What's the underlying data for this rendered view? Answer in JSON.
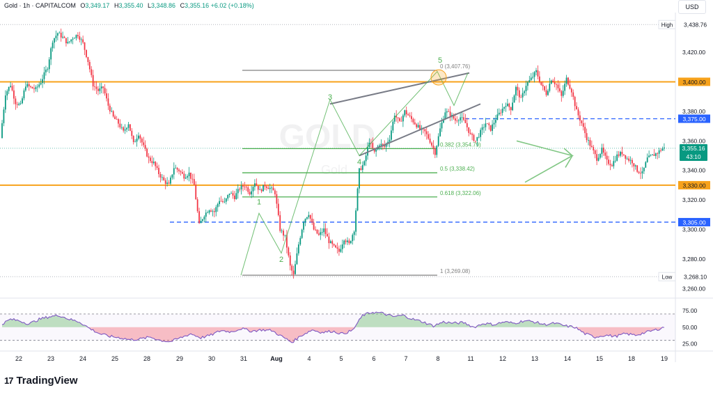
{
  "header": {
    "symbol": "Gold · 1h · CAPITALCOM",
    "open_label": "O",
    "open": "3,349.17",
    "high_label": "H",
    "high": "3,355.40",
    "low_label": "L",
    "low": "3,348.86",
    "close_label": "C",
    "close": "3,355.16",
    "change": "+6.02 (+0.18%)"
  },
  "currency": "USD",
  "brand": {
    "logo_glyph": "17",
    "name": "TradingView"
  },
  "watermark": {
    "symbol": "GOLD",
    "name": "Gold"
  },
  "current_price": {
    "value": "3,355.16",
    "countdown": "43:10"
  },
  "colors": {
    "up": "#089981",
    "down": "#f23645",
    "orange": "#f7a21b",
    "blue": "#2962ff",
    "fib": "#4caf50",
    "gray": "#808080",
    "rsi": "#7e57c2"
  },
  "chart_data": {
    "type": "candlestick",
    "ylim": [
      3255,
      3445
    ],
    "x_ticks": [
      "22",
      "23",
      "24",
      "25",
      "28",
      "29",
      "30",
      "31",
      "Aug",
      "4",
      "5",
      "6",
      "7",
      "8",
      "11",
      "12",
      "13",
      "14",
      "15",
      "18",
      "19"
    ],
    "y_ticks": [
      "3,420.00",
      "3,380.00",
      "3,360.00",
      "3,340.00",
      "3,320.00",
      "3,300.00",
      "3,280.00",
      "3,260.00"
    ],
    "price_key_points": [
      [
        0,
        3362
      ],
      [
        3,
        3392
      ],
      [
        6,
        3398
      ],
      [
        9,
        3386
      ],
      [
        12,
        3384
      ],
      [
        15,
        3398
      ],
      [
        18,
        3396
      ],
      [
        21,
        3395
      ],
      [
        24,
        3400
      ],
      [
        28,
        3410
      ],
      [
        31,
        3428
      ],
      [
        34,
        3433
      ],
      [
        37,
        3430
      ],
      [
        40,
        3426
      ],
      [
        43,
        3430
      ],
      [
        46,
        3432
      ],
      [
        49,
        3426
      ],
      [
        52,
        3414
      ],
      [
        55,
        3398
      ],
      [
        58,
        3394
      ],
      [
        61,
        3396
      ],
      [
        64,
        3384
      ],
      [
        67,
        3376
      ],
      [
        70,
        3372
      ],
      [
        73,
        3366
      ],
      [
        76,
        3372
      ],
      [
        79,
        3358
      ],
      [
        82,
        3365
      ],
      [
        85,
        3356
      ],
      [
        88,
        3348
      ],
      [
        91,
        3345
      ],
      [
        94,
        3338
      ],
      [
        97,
        3333
      ],
      [
        100,
        3330
      ],
      [
        103,
        3342
      ],
      [
        106,
        3340
      ],
      [
        109,
        3336
      ],
      [
        112,
        3338
      ],
      [
        115,
        3330
      ],
      [
        118,
        3303
      ],
      [
        121,
        3310
      ],
      [
        124,
        3314
      ],
      [
        127,
        3312
      ],
      [
        130,
        3320
      ],
      [
        133,
        3318
      ],
      [
        136,
        3325
      ],
      [
        139,
        3322
      ],
      [
        142,
        3328
      ],
      [
        145,
        3330
      ],
      [
        148,
        3325
      ],
      [
        151,
        3332
      ],
      [
        154,
        3326
      ],
      [
        157,
        3330
      ],
      [
        160,
        3328
      ],
      [
        163,
        3325
      ],
      [
        166,
        3300
      ],
      [
        169,
        3295
      ],
      [
        172,
        3275
      ],
      [
        174,
        3269
      ],
      [
        177,
        3290
      ],
      [
        180,
        3306
      ],
      [
        183,
        3311
      ],
      [
        186,
        3300
      ],
      [
        189,
        3296
      ],
      [
        192,
        3300
      ],
      [
        195,
        3292
      ],
      [
        198,
        3288
      ],
      [
        201,
        3285
      ],
      [
        204,
        3294
      ],
      [
        207,
        3290
      ],
      [
        210,
        3300
      ],
      [
        213,
        3340
      ],
      [
        216,
        3345
      ],
      [
        219,
        3360
      ],
      [
        222,
        3352
      ],
      [
        225,
        3358
      ],
      [
        228,
        3356
      ],
      [
        231,
        3362
      ],
      [
        234,
        3378
      ],
      [
        237,
        3372
      ],
      [
        240,
        3380
      ],
      [
        243,
        3376
      ],
      [
        246,
        3372
      ],
      [
        249,
        3368
      ],
      [
        252,
        3366
      ],
      [
        255,
        3360
      ],
      [
        258,
        3352
      ],
      [
        261,
        3368
      ],
      [
        264,
        3380
      ],
      [
        267,
        3378
      ],
      [
        270,
        3374
      ],
      [
        273,
        3376
      ],
      [
        276,
        3372
      ],
      [
        279,
        3364
      ],
      [
        282,
        3360
      ],
      [
        285,
        3366
      ],
      [
        288,
        3372
      ],
      [
        291,
        3368
      ],
      [
        294,
        3375
      ],
      [
        297,
        3380
      ],
      [
        300,
        3385
      ],
      [
        303,
        3382
      ],
      [
        306,
        3396
      ],
      [
        309,
        3388
      ],
      [
        312,
        3398
      ],
      [
        315,
        3402
      ],
      [
        318,
        3407
      ],
      [
        321,
        3398
      ],
      [
        324,
        3392
      ],
      [
        327,
        3402
      ],
      [
        330,
        3398
      ],
      [
        333,
        3390
      ],
      [
        336,
        3402
      ],
      [
        339,
        3394
      ],
      [
        342,
        3380
      ],
      [
        345,
        3372
      ],
      [
        348,
        3362
      ],
      [
        351,
        3355
      ],
      [
        354,
        3348
      ],
      [
        357,
        3354
      ],
      [
        360,
        3346
      ],
      [
        363,
        3344
      ],
      [
        366,
        3350
      ],
      [
        369,
        3352
      ],
      [
        372,
        3348
      ],
      [
        375,
        3346
      ],
      [
        378,
        3340
      ],
      [
        381,
        3338
      ],
      [
        384,
        3348
      ],
      [
        387,
        3350
      ],
      [
        390,
        3352
      ],
      [
        393,
        3355
      ]
    ],
    "price_levels": [
      {
        "value": 3400.0,
        "label": "3,400.00",
        "style": "orange"
      },
      {
        "value": 3330.0,
        "label": "3,330.00",
        "style": "orange"
      },
      {
        "value": 3375.0,
        "label": "3,375.00",
        "style": "blue-dashed"
      },
      {
        "value": 3305.0,
        "label": "3,305.00",
        "style": "blue-dashed"
      }
    ],
    "high": {
      "label": "High",
      "value": 3438.76,
      "text": "3,438.76"
    },
    "low": {
      "label": "Low",
      "value": 3268.1,
      "text": "3,268.10"
    },
    "fibonacci": [
      {
        "ratio": "0",
        "value": 3407.76,
        "text": "0 (3,407.76)"
      },
      {
        "ratio": "0.382",
        "value": 3354.79,
        "text": "0.382 (3,354.79)"
      },
      {
        "ratio": "0.5",
        "value": 3338.42,
        "text": "0.5 (3,338.42)"
      },
      {
        "ratio": "0.618",
        "value": 3322.06,
        "text": "0.618 (3,322.06)"
      },
      {
        "ratio": "1",
        "value": 3269.08,
        "text": "1 (3,269.08)"
      }
    ],
    "waves": [
      {
        "label": "1",
        "x": 184,
        "y": 3317
      },
      {
        "label": "2",
        "x": 193,
        "y": 3278
      },
      {
        "label": "3",
        "x": 234,
        "y": 3388
      },
      {
        "label": "4",
        "x": 257,
        "y": 3344
      },
      {
        "label": "5",
        "x": 314,
        "y": 3413
      }
    ],
    "rsi": {
      "ylim": [
        18,
        90
      ],
      "ticks": [
        "75.00",
        "50.00",
        "25.00"
      ],
      "upper": 70,
      "lower": 30,
      "key_points": [
        [
          0,
          55
        ],
        [
          5,
          62
        ],
        [
          10,
          60
        ],
        [
          16,
          55
        ],
        [
          22,
          62
        ],
        [
          28,
          66
        ],
        [
          34,
          68
        ],
        [
          40,
          62
        ],
        [
          46,
          58
        ],
        [
          52,
          48
        ],
        [
          58,
          40
        ],
        [
          64,
          36
        ],
        [
          70,
          34
        ],
        [
          76,
          31
        ],
        [
          82,
          32
        ],
        [
          88,
          35
        ],
        [
          94,
          30
        ],
        [
          100,
          28
        ],
        [
          106,
          34
        ],
        [
          112,
          40
        ],
        [
          118,
          34
        ],
        [
          124,
          38
        ],
        [
          130,
          45
        ],
        [
          136,
          43
        ],
        [
          142,
          48
        ],
        [
          148,
          44
        ],
        [
          154,
          46
        ],
        [
          160,
          45
        ],
        [
          166,
          36
        ],
        [
          172,
          27
        ],
        [
          178,
          38
        ],
        [
          184,
          46
        ],
        [
          190,
          42
        ],
        [
          196,
          44
        ],
        [
          202,
          40
        ],
        [
          208,
          45
        ],
        [
          214,
          68
        ],
        [
          220,
          73
        ],
        [
          226,
          71
        ],
        [
          232,
          66
        ],
        [
          238,
          68
        ],
        [
          244,
          62
        ],
        [
          250,
          58
        ],
        [
          256,
          52
        ],
        [
          262,
          58
        ],
        [
          268,
          56
        ],
        [
          274,
          57
        ],
        [
          280,
          50
        ],
        [
          286,
          56
        ],
        [
          292,
          54
        ],
        [
          298,
          58
        ],
        [
          304,
          56
        ],
        [
          310,
          60
        ],
        [
          316,
          58
        ],
        [
          322,
          54
        ],
        [
          328,
          56
        ],
        [
          334,
          52
        ],
        [
          340,
          50
        ],
        [
          346,
          40
        ],
        [
          352,
          35
        ],
        [
          358,
          38
        ],
        [
          364,
          36
        ],
        [
          370,
          40
        ],
        [
          376,
          38
        ],
        [
          382,
          42
        ],
        [
          388,
          46
        ],
        [
          393,
          50
        ]
      ]
    }
  }
}
